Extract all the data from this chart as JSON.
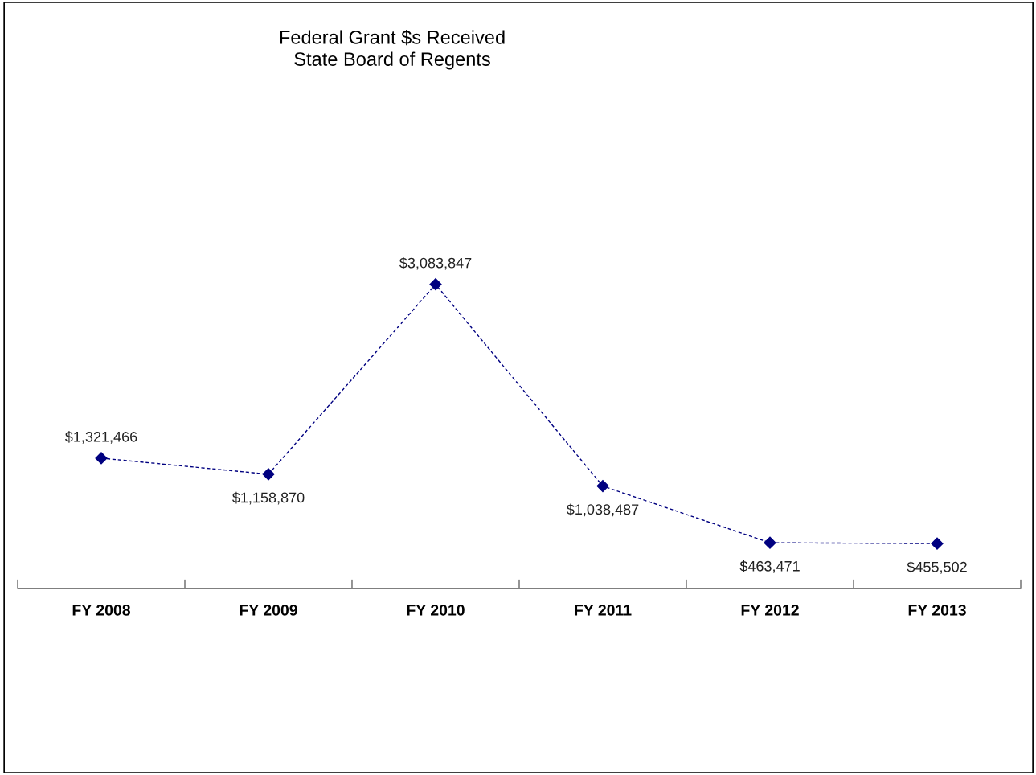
{
  "chart_data": {
    "type": "line",
    "title": "Federal Grant $s Received\nState Board of Regents",
    "categories": [
      "FY 2008",
      "FY 2009",
      "FY 2010",
      "FY 2011",
      "FY 2012",
      "FY 2013"
    ],
    "values": [
      1321466,
      1158870,
      3083847,
      1038487,
      463471,
      455502
    ],
    "value_labels": [
      "$1,321,466",
      "$1,158,870",
      "$3,083,847",
      "$1,038,487",
      "$463,471",
      "$455,502"
    ],
    "color": "#000080",
    "marker": "diamond",
    "line_style": "dashed",
    "grid": false,
    "legend": false
  }
}
